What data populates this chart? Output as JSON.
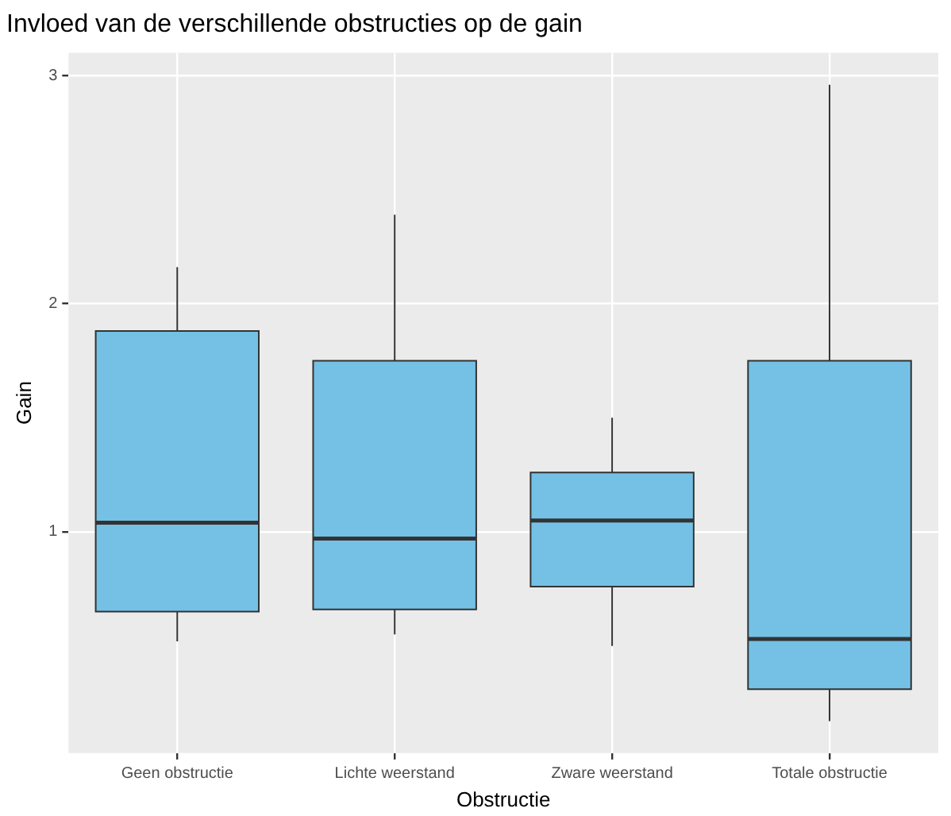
{
  "chart_data": {
    "type": "box",
    "title": "Invloed van de verschillende obstructies op de gain",
    "xlabel": "Obstructie",
    "ylabel": "Gain",
    "categories": [
      "Geen obstructie",
      "Lichte weerstand",
      "Zware weerstand",
      "Totale obstructie"
    ],
    "color": "#75c1e6",
    "boxes": [
      {
        "low": 0.52,
        "q1": 0.65,
        "median": 1.04,
        "q3": 1.88,
        "high": 2.16
      },
      {
        "low": 0.55,
        "q1": 0.66,
        "median": 0.97,
        "q3": 1.75,
        "high": 2.39
      },
      {
        "low": 0.5,
        "q1": 0.76,
        "median": 1.05,
        "q3": 1.26,
        "high": 1.5
      },
      {
        "low": 0.17,
        "q1": 0.31,
        "median": 0.53,
        "q3": 1.75,
        "high": 2.96
      }
    ],
    "ylim": [
      0.03,
      3.1
    ],
    "yticks": [
      1,
      2,
      3
    ],
    "grid": true,
    "legend": false
  }
}
